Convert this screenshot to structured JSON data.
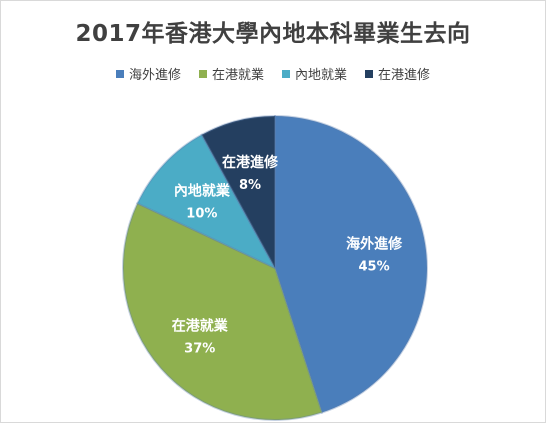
{
  "chart_data": {
    "type": "pie",
    "title": "2017年香港大學內地本科畢業生去向",
    "legend_position": "top",
    "slices": [
      {
        "label": "海外進修",
        "value": 45,
        "value_label": "45%",
        "color": "#4a7ebb"
      },
      {
        "label": "在港就業",
        "value": 37,
        "value_label": "37%",
        "color": "#8fb04f"
      },
      {
        "label": "內地就業",
        "value": 10,
        "value_label": "10%",
        "color": "#4bacc6"
      },
      {
        "label": "在港進修",
        "value": 8,
        "value_label": "8%",
        "color": "#243f60"
      }
    ]
  }
}
